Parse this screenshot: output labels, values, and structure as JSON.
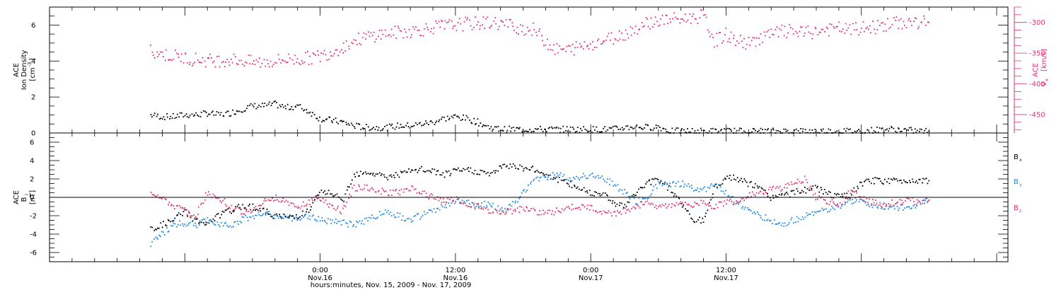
{
  "chart_data": [
    {
      "type": "scatter",
      "panel": "top",
      "ylabel_left": [
        "ACE",
        "Ion Density",
        "[cm",
        "-3",
        "]"
      ],
      "ylabel_right": [
        "ACE",
        "V",
        "x",
        " [km/s]"
      ],
      "ylim_left": [
        0,
        7
      ],
      "yticks_left": [
        0,
        2,
        4,
        6
      ],
      "ylim_right": [
        -480,
        -275
      ],
      "yticks_right": [
        -450,
        -400,
        -350,
        -300
      ],
      "grid": false,
      "legend": "none",
      "colors": {
        "density": "#000000",
        "vx": "#e0346a"
      },
      "series": [
        {
          "key": "density",
          "axis": "left",
          "x": [
            -15,
            -14,
            -13,
            -12,
            -11,
            -10,
            -9,
            -8,
            -7,
            -6,
            -5,
            -4,
            -3,
            -2,
            -1,
            0,
            1,
            2,
            3,
            4,
            5,
            6,
            7,
            8,
            9,
            10,
            11,
            12,
            13,
            14,
            15,
            16,
            17,
            18,
            19,
            20,
            21,
            22,
            23,
            24,
            25,
            26,
            27,
            28,
            29,
            30,
            31,
            32,
            33,
            34,
            35,
            36,
            37,
            38,
            39,
            40,
            41,
            42,
            43,
            44,
            45,
            46,
            47,
            48,
            49,
            50,
            51,
            52,
            53,
            54
          ],
          "values": [
            1.0,
            0.9,
            0.9,
            1.0,
            1.0,
            1.1,
            1.0,
            1.1,
            1.3,
            1.5,
            1.5,
            1.6,
            1.4,
            1.5,
            1.2,
            0.8,
            0.7,
            0.6,
            0.4,
            0.3,
            0.3,
            0.3,
            0.4,
            0.4,
            0.5,
            0.6,
            0.8,
            0.9,
            0.8,
            0.6,
            0.3,
            0.2,
            0.2,
            0.2,
            0.2,
            0.2,
            0.2,
            0.2,
            0.2,
            0.2,
            0.2,
            0.2,
            0.3,
            0.35,
            0.3,
            0.35,
            0.1,
            0.1,
            0.1,
            0.1,
            0.1,
            0.1,
            0.1,
            0.1,
            0.1,
            0.1,
            0.1,
            0.1,
            0.1,
            0.1,
            0.1,
            0.1,
            0.1,
            0.1,
            0.15,
            0.2,
            0.2,
            0.15,
            0.1,
            0.1
          ]
        },
        {
          "key": "vx",
          "axis": "right",
          "x": [
            -15,
            -14,
            -13,
            -12,
            -11,
            -10,
            -9,
            -8,
            -7,
            -6,
            -5,
            -4,
            -3,
            -2,
            -1,
            0,
            1,
            2,
            3,
            4,
            5,
            6,
            7,
            8,
            9,
            10,
            11,
            12,
            13,
            14,
            15,
            16,
            17,
            18,
            19,
            20,
            21,
            22,
            23,
            24,
            25,
            26,
            27,
            28,
            29,
            30,
            31,
            32,
            33,
            34,
            35,
            36,
            37,
            38,
            39,
            40,
            41,
            42,
            43,
            44,
            45,
            46,
            47,
            48,
            49,
            50,
            51,
            52,
            53,
            54
          ],
          "values": [
            -345,
            -352,
            -355,
            -358,
            -360,
            -362,
            -362,
            -360,
            -362,
            -365,
            -365,
            -363,
            -360,
            -360,
            -358,
            -355,
            -348,
            -340,
            -330,
            -325,
            -320,
            -318,
            -316,
            -314,
            -312,
            -308,
            -306,
            -304,
            -302,
            -302,
            -300,
            -302,
            -305,
            -310,
            -312,
            -330,
            -345,
            -345,
            -340,
            -335,
            -330,
            -325,
            -318,
            -310,
            -300,
            -298,
            -295,
            -295,
            -292,
            -290,
            -330,
            -320,
            -330,
            -335,
            -325,
            -320,
            -315,
            -315,
            -318,
            -315,
            -312,
            -310,
            -312,
            -310,
            -308,
            -305,
            -302,
            -300,
            -300,
            -300
          ]
        }
      ]
    },
    {
      "type": "scatter",
      "panel": "bottom",
      "ylabel_left": [
        "ACE",
        "B",
        "i",
        "[nT]"
      ],
      "ylim_left": [
        -7,
        7
      ],
      "yticks_left": [
        -6,
        -4,
        -2,
        0,
        2,
        4,
        6
      ],
      "zero_line": true,
      "grid": false,
      "legend": "right",
      "x_axis": {
        "min_hours": -24,
        "max_hours": 61,
        "ticks": [
          {
            "hours": 0,
            "time": "0:00",
            "date": "Nov.16"
          },
          {
            "hours": 12,
            "time": "12:00",
            "date": "Nov.16"
          },
          {
            "hours": 24,
            "time": "0:00",
            "date": "Nov.17"
          },
          {
            "hours": 36,
            "time": "12:00",
            "date": "Nov.17"
          }
        ],
        "label": "hours:minutes, Nov. 15, 2009 - Nov. 17, 2009"
      },
      "series": [
        {
          "name": "B",
          "sub": "x",
          "color": "#000000",
          "x": [
            -15,
            -14,
            -13,
            -12,
            -11,
            -10,
            -9,
            -8,
            -7,
            -6,
            -5,
            -4,
            -3,
            -2,
            -1,
            0,
            1,
            2,
            3,
            4,
            5,
            6,
            7,
            8,
            9,
            10,
            11,
            12,
            13,
            14,
            15,
            16,
            17,
            18,
            19,
            20,
            21,
            22,
            23,
            24,
            25,
            26,
            27,
            28,
            29,
            30,
            31,
            32,
            33,
            34,
            35,
            36,
            37,
            38,
            39,
            40,
            41,
            42,
            43,
            44,
            45,
            46,
            47,
            48,
            49,
            50,
            51,
            52,
            53,
            54
          ],
          "values": [
            -3.5,
            -3.0,
            -2.5,
            -1.5,
            -2.5,
            -3.0,
            -2.0,
            -1.5,
            -1.0,
            -1.0,
            -1.5,
            -2.0,
            -2.2,
            -2.0,
            -1.5,
            0.5,
            0.5,
            -0.5,
            2.5,
            2.8,
            2.5,
            2.2,
            2.5,
            2.8,
            3.0,
            2.8,
            2.5,
            2.8,
            3.0,
            2.8,
            2.5,
            3.2,
            3.5,
            3.2,
            3.0,
            2.5,
            2.0,
            1.5,
            1.0,
            0.5,
            0.5,
            -0.5,
            -1.0,
            0.5,
            1.5,
            2.0,
            1.0,
            -0.5,
            -2.5,
            -2.5,
            1.0,
            2.2,
            2.0,
            1.5,
            1.0,
            0.0,
            0.2,
            0.5,
            0.8,
            1.0,
            0.5,
            0.0,
            0.2,
            1.5,
            1.8,
            1.8,
            1.8,
            1.8,
            1.9,
            1.8
          ]
        },
        {
          "name": "B",
          "sub": "y",
          "color": "#1e88e5",
          "x": [
            -15,
            -14,
            -13,
            -12,
            -11,
            -10,
            -9,
            -8,
            -7,
            -6,
            -5,
            -4,
            -3,
            -2,
            -1,
            0,
            1,
            2,
            3,
            4,
            5,
            6,
            7,
            8,
            9,
            10,
            11,
            12,
            13,
            14,
            15,
            16,
            17,
            18,
            19,
            20,
            21,
            22,
            23,
            24,
            25,
            26,
            27,
            28,
            29,
            30,
            31,
            32,
            33,
            34,
            35,
            36,
            37,
            38,
            39,
            40,
            41,
            42,
            43,
            44,
            45,
            46,
            47,
            48,
            49,
            50,
            51,
            52,
            53,
            54
          ],
          "values": [
            -5.0,
            -4.0,
            -3.0,
            -2.8,
            -3.0,
            -2.5,
            -2.8,
            -3.0,
            -2.5,
            -2.0,
            -1.8,
            -2.0,
            -2.2,
            -2.5,
            -2.0,
            -2.5,
            -2.5,
            -2.8,
            -3.0,
            -2.5,
            -2.0,
            -1.5,
            -2.0,
            -2.5,
            -2.0,
            -1.5,
            -1.0,
            -0.5,
            -0.5,
            -1.0,
            -0.5,
            -1.5,
            -1.0,
            0.5,
            2.0,
            2.2,
            2.5,
            2.0,
            2.2,
            2.5,
            2.0,
            1.5,
            0.5,
            -0.5,
            0.0,
            1.5,
            1.5,
            1.5,
            1.0,
            0.8,
            1.5,
            0.5,
            -0.5,
            -1.5,
            -2.0,
            -2.5,
            -3.0,
            -2.5,
            -2.0,
            -1.5,
            -1.5,
            -1.0,
            -0.5,
            -0.5,
            -0.8,
            -1.0,
            -1.2,
            -1.0,
            -0.8,
            -0.3
          ]
        },
        {
          "name": "B",
          "sub": "z",
          "color": "#e0346a",
          "x": [
            -15,
            -14,
            -13,
            -12,
            -11,
            -10,
            -9,
            -8,
            -7,
            -6,
            -5,
            -4,
            -3,
            -2,
            -1,
            0,
            1,
            2,
            3,
            4,
            5,
            6,
            7,
            8,
            9,
            10,
            11,
            12,
            13,
            14,
            15,
            16,
            17,
            18,
            19,
            20,
            21,
            22,
            23,
            24,
            25,
            26,
            27,
            28,
            29,
            30,
            31,
            32,
            33,
            34,
            35,
            36,
            37,
            38,
            39,
            40,
            41,
            42,
            43,
            44,
            45,
            46,
            47,
            48,
            49,
            50,
            51,
            52,
            53,
            54
          ],
          "values": [
            0.5,
            0.0,
            -1.0,
            -1.5,
            -2.0,
            0.5,
            0.0,
            -1.0,
            -1.5,
            -1.5,
            -0.5,
            0.0,
            -0.5,
            -1.0,
            -0.5,
            0.0,
            -1.0,
            -1.5,
            1.0,
            1.2,
            0.8,
            0.5,
            0.5,
            1.0,
            0.5,
            0.0,
            -0.5,
            -0.2,
            -0.8,
            -1.0,
            -1.5,
            -1.5,
            -1.5,
            -1.2,
            -1.5,
            -1.8,
            -1.5,
            -1.2,
            -1.0,
            -1.2,
            -1.5,
            -1.8,
            -1.5,
            -1.0,
            -0.5,
            -1.0,
            -1.0,
            -0.5,
            -1.0,
            -0.5,
            -1.0,
            -0.5,
            -0.5,
            0.2,
            0.5,
            0.8,
            1.0,
            1.5,
            2.0,
            0.0,
            -0.5,
            -0.8,
            0.5,
            0.0,
            -0.5,
            -0.8,
            -0.5,
            -0.3,
            -0.5,
            -0.3
          ]
        }
      ]
    }
  ]
}
